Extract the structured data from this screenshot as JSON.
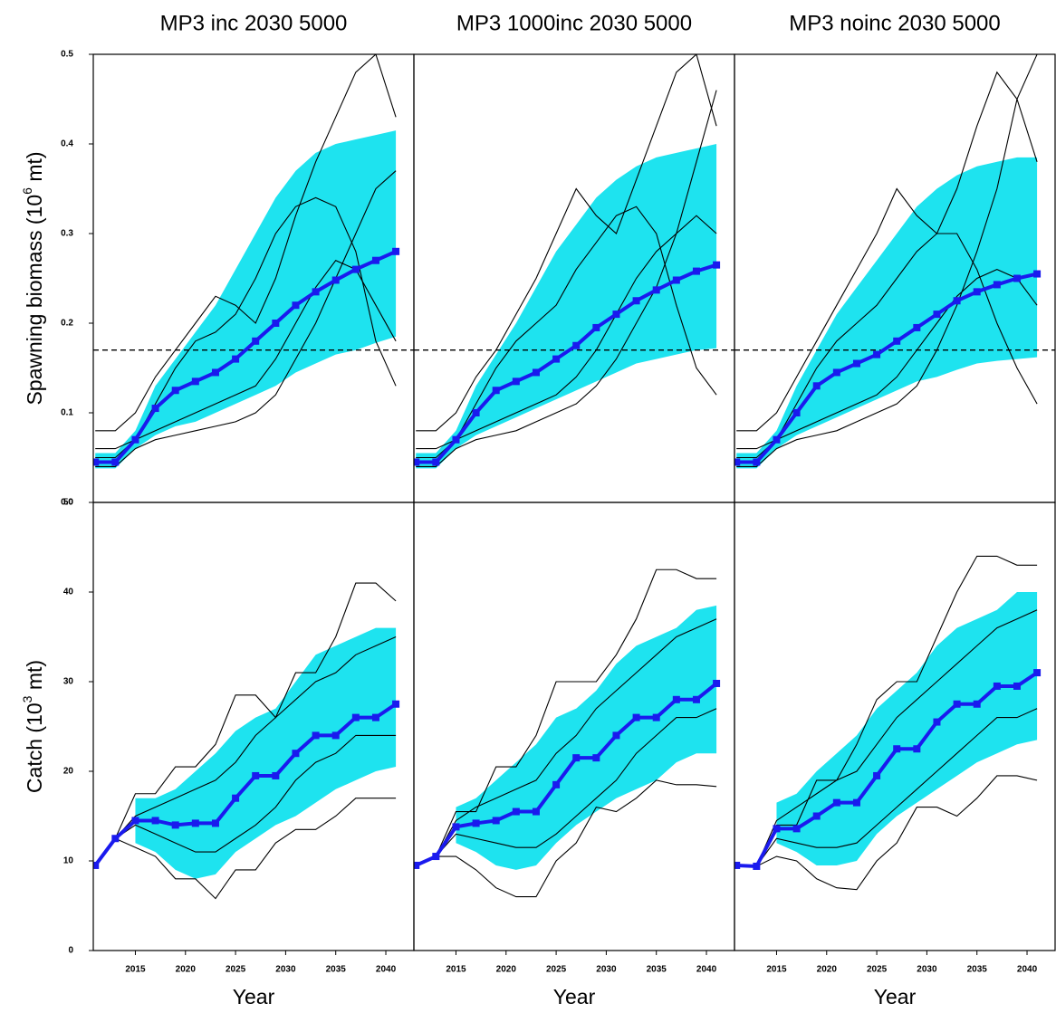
{
  "chart_data": [
    {
      "type": "line",
      "title": "MP3 inc 2030 5000",
      "ylabel": {
        "text": "Spawning biomass (10",
        "sup": "6",
        "tail": " mt)"
      },
      "x": [
        2011,
        2013,
        2015,
        2017,
        2019,
        2021,
        2023,
        2025,
        2027,
        2029,
        2031,
        2033,
        2035,
        2037,
        2039,
        2041
      ],
      "xlim": [
        2010.8,
        2042.8
      ],
      "ylim": [
        0,
        0.5
      ],
      "yticks": [
        {
          "value": 0,
          "label": "0.0"
        },
        0.1,
        0.2,
        0.3,
        0.4,
        0.5
      ],
      "reference_line": 0.17,
      "band": {
        "color": "#1ee3ef",
        "lower": [
          0.038,
          0.038,
          0.06,
          0.075,
          0.085,
          0.09,
          0.1,
          0.11,
          0.12,
          0.13,
          0.145,
          0.155,
          0.165,
          0.17,
          0.178,
          0.185
        ],
        "upper": [
          0.055,
          0.055,
          0.08,
          0.13,
          0.16,
          0.19,
          0.22,
          0.26,
          0.3,
          0.34,
          0.37,
          0.39,
          0.4,
          0.405,
          0.41,
          0.415
        ]
      },
      "median": {
        "color": "#1a1aee",
        "values": [
          0.045,
          0.045,
          0.07,
          0.105,
          0.125,
          0.135,
          0.145,
          0.16,
          0.18,
          0.2,
          0.22,
          0.235,
          0.248,
          0.26,
          0.27,
          0.28
        ]
      },
      "series": [
        {
          "color": "#000000",
          "values": [
            0.08,
            0.08,
            0.1,
            0.14,
            0.17,
            0.2,
            0.23,
            0.22,
            0.2,
            0.25,
            0.32,
            0.38,
            0.43,
            0.48,
            0.5,
            0.43
          ]
        },
        {
          "color": "#000000",
          "values": [
            0.06,
            0.06,
            0.07,
            0.08,
            0.09,
            0.1,
            0.11,
            0.12,
            0.13,
            0.16,
            0.2,
            0.24,
            0.27,
            0.26,
            0.22,
            0.18
          ]
        },
        {
          "color": "#000000",
          "values": [
            0.05,
            0.05,
            0.07,
            0.11,
            0.15,
            0.18,
            0.19,
            0.21,
            0.25,
            0.3,
            0.33,
            0.34,
            0.33,
            0.28,
            0.18,
            0.13
          ]
        },
        {
          "color": "#000000",
          "values": [
            0.04,
            0.04,
            0.06,
            0.07,
            0.075,
            0.08,
            0.085,
            0.09,
            0.1,
            0.12,
            0.16,
            0.2,
            0.25,
            0.3,
            0.35,
            0.37
          ]
        }
      ]
    },
    {
      "type": "line",
      "title": "MP3 1000inc 2030 5000",
      "x": [
        2011,
        2013,
        2015,
        2017,
        2019,
        2021,
        2023,
        2025,
        2027,
        2029,
        2031,
        2033,
        2035,
        2037,
        2039,
        2041
      ],
      "xlim": [
        2010.8,
        2042.8
      ],
      "ylim": [
        0,
        0.5
      ],
      "reference_line": 0.17,
      "band": {
        "color": "#1ee3ef",
        "lower": [
          0.038,
          0.038,
          0.06,
          0.075,
          0.085,
          0.095,
          0.105,
          0.115,
          0.125,
          0.135,
          0.145,
          0.155,
          0.16,
          0.165,
          0.17,
          0.172
        ],
        "upper": [
          0.055,
          0.055,
          0.08,
          0.13,
          0.165,
          0.2,
          0.24,
          0.28,
          0.31,
          0.34,
          0.36,
          0.375,
          0.385,
          0.39,
          0.395,
          0.4
        ]
      },
      "median": {
        "color": "#1a1aee",
        "values": [
          0.045,
          0.045,
          0.07,
          0.1,
          0.125,
          0.135,
          0.145,
          0.16,
          0.175,
          0.195,
          0.21,
          0.225,
          0.237,
          0.248,
          0.258,
          0.265
        ]
      },
      "series": [
        {
          "color": "#000000",
          "values": [
            0.08,
            0.08,
            0.1,
            0.14,
            0.17,
            0.21,
            0.25,
            0.3,
            0.35,
            0.32,
            0.3,
            0.36,
            0.42,
            0.48,
            0.5,
            0.42
          ]
        },
        {
          "color": "#000000",
          "values": [
            0.06,
            0.06,
            0.07,
            0.08,
            0.09,
            0.1,
            0.11,
            0.12,
            0.14,
            0.17,
            0.21,
            0.25,
            0.28,
            0.3,
            0.32,
            0.3
          ]
        },
        {
          "color": "#000000",
          "values": [
            0.05,
            0.05,
            0.07,
            0.11,
            0.15,
            0.18,
            0.2,
            0.22,
            0.26,
            0.29,
            0.32,
            0.33,
            0.3,
            0.22,
            0.15,
            0.12
          ]
        },
        {
          "color": "#000000",
          "values": [
            0.04,
            0.04,
            0.06,
            0.07,
            0.075,
            0.08,
            0.09,
            0.1,
            0.11,
            0.13,
            0.16,
            0.2,
            0.24,
            0.3,
            0.38,
            0.46
          ]
        }
      ]
    },
    {
      "type": "line",
      "title": "MP3 noinc 2030 5000",
      "x": [
        2011,
        2013,
        2015,
        2017,
        2019,
        2021,
        2023,
        2025,
        2027,
        2029,
        2031,
        2033,
        2035,
        2037,
        2039,
        2041
      ],
      "xlim": [
        2010.8,
        2042.8
      ],
      "ylim": [
        0,
        0.5
      ],
      "reference_line": 0.17,
      "band": {
        "color": "#1ee3ef",
        "lower": [
          0.038,
          0.038,
          0.06,
          0.075,
          0.085,
          0.095,
          0.105,
          0.115,
          0.125,
          0.135,
          0.14,
          0.148,
          0.155,
          0.158,
          0.16,
          0.162
        ],
        "upper": [
          0.055,
          0.055,
          0.08,
          0.13,
          0.17,
          0.21,
          0.24,
          0.27,
          0.3,
          0.33,
          0.35,
          0.365,
          0.375,
          0.38,
          0.385,
          0.385
        ]
      },
      "median": {
        "color": "#1a1aee",
        "values": [
          0.045,
          0.045,
          0.07,
          0.1,
          0.13,
          0.145,
          0.155,
          0.165,
          0.18,
          0.195,
          0.21,
          0.225,
          0.235,
          0.243,
          0.25,
          0.255
        ]
      },
      "series": [
        {
          "color": "#000000",
          "values": [
            0.08,
            0.08,
            0.1,
            0.14,
            0.18,
            0.22,
            0.26,
            0.3,
            0.35,
            0.32,
            0.3,
            0.35,
            0.42,
            0.48,
            0.45,
            0.38
          ]
        },
        {
          "color": "#000000",
          "values": [
            0.06,
            0.06,
            0.07,
            0.08,
            0.09,
            0.1,
            0.11,
            0.12,
            0.14,
            0.17,
            0.2,
            0.23,
            0.25,
            0.26,
            0.25,
            0.22
          ]
        },
        {
          "color": "#000000",
          "values": [
            0.05,
            0.05,
            0.07,
            0.11,
            0.15,
            0.18,
            0.2,
            0.22,
            0.25,
            0.28,
            0.3,
            0.3,
            0.26,
            0.2,
            0.15,
            0.11
          ]
        },
        {
          "color": "#000000",
          "values": [
            0.04,
            0.04,
            0.06,
            0.07,
            0.075,
            0.08,
            0.09,
            0.1,
            0.11,
            0.13,
            0.17,
            0.22,
            0.28,
            0.35,
            0.45,
            0.5
          ]
        }
      ]
    },
    {
      "type": "line",
      "xlabel": "Year",
      "ylabel": {
        "text": "Catch (10",
        "sup": "3",
        "tail": " mt)"
      },
      "x": [
        2011,
        2013,
        2015,
        2017,
        2019,
        2021,
        2023,
        2025,
        2027,
        2029,
        2031,
        2033,
        2035,
        2037,
        2039,
        2041
      ],
      "xlim": [
        2010.8,
        2042.8
      ],
      "ylim": [
        0,
        50
      ],
      "xticks": [
        2015,
        2020,
        2025,
        2030,
        2035,
        2040
      ],
      "yticks": [
        0,
        10,
        20,
        30,
        40,
        50
      ],
      "band": {
        "color": "#1ee3ef",
        "lower": [
          null,
          null,
          12,
          11,
          9,
          8,
          8.5,
          11,
          12.5,
          14,
          15,
          16.5,
          18,
          19,
          20,
          20.5
        ],
        "upper": [
          null,
          null,
          17,
          17,
          18,
          20,
          22,
          24.5,
          26,
          27,
          30,
          33,
          34,
          35,
          36,
          36
        ]
      },
      "median": {
        "color": "#1a1aee",
        "values": [
          9.5,
          12.5,
          14.5,
          14.5,
          14,
          14.2,
          14.2,
          17,
          19.5,
          19.5,
          22,
          24,
          24,
          26,
          26,
          27.5
        ]
      },
      "series": [
        {
          "color": "#000000",
          "values": [
            9.5,
            12.5,
            17.5,
            17.5,
            20.5,
            20.5,
            23,
            28.5,
            28.5,
            26,
            31,
            31,
            35,
            41,
            41,
            39
          ]
        },
        {
          "color": "#000000",
          "values": [
            9.5,
            12.5,
            11.5,
            10.5,
            8,
            8,
            5.8,
            9,
            9,
            12,
            13.5,
            13.5,
            15,
            17,
            17,
            17
          ]
        },
        {
          "color": "#000000",
          "values": [
            9.5,
            12.5,
            14,
            13,
            12,
            11,
            11,
            12.5,
            14,
            16,
            19,
            21,
            22,
            24,
            24,
            24
          ]
        },
        {
          "color": "#000000",
          "values": [
            9.5,
            12.5,
            15,
            16,
            17,
            18,
            19,
            21,
            24,
            26,
            28,
            30,
            31,
            33,
            34,
            35
          ]
        }
      ]
    },
    {
      "type": "line",
      "xlabel": "Year",
      "x": [
        2011,
        2013,
        2015,
        2017,
        2019,
        2021,
        2023,
        2025,
        2027,
        2029,
        2031,
        2033,
        2035,
        2037,
        2039,
        2041
      ],
      "xlim": [
        2010.8,
        2042.8
      ],
      "ylim": [
        0,
        50
      ],
      "xticks": [
        2015,
        2020,
        2025,
        2030,
        2035,
        2040
      ],
      "band": {
        "color": "#1ee3ef",
        "lower": [
          null,
          null,
          12,
          11,
          9.5,
          9,
          9.5,
          12,
          14,
          15.5,
          17,
          18,
          19,
          21,
          22,
          22
        ],
        "upper": [
          null,
          null,
          16,
          17,
          19,
          21,
          23,
          26,
          27,
          29,
          32,
          34,
          35,
          36,
          38,
          38.5
        ]
      },
      "median": {
        "color": "#1a1aee",
        "values": [
          9.5,
          10.5,
          13.8,
          14.2,
          14.5,
          15.5,
          15.5,
          18.5,
          21.5,
          21.5,
          24,
          26,
          26,
          28,
          28,
          29.8
        ]
      },
      "series": [
        {
          "color": "#000000",
          "values": [
            9.5,
            10.5,
            15.5,
            15.5,
            20.5,
            20.5,
            24,
            30,
            30,
            30,
            33,
            37,
            42.5,
            42.5,
            41.5,
            41.5
          ]
        },
        {
          "color": "#000000",
          "values": [
            9.5,
            10.5,
            10.5,
            9,
            7,
            6,
            6,
            10,
            12,
            16,
            15.5,
            17,
            19,
            18.5,
            18.5,
            18.3
          ]
        },
        {
          "color": "#000000",
          "values": [
            9.5,
            10.5,
            13,
            12.5,
            12,
            11.5,
            11.5,
            13,
            15,
            17,
            19,
            22,
            24,
            26,
            26,
            27
          ]
        },
        {
          "color": "#000000",
          "values": [
            9.5,
            10.5,
            14.5,
            16,
            17,
            18,
            19,
            22,
            24,
            27,
            29,
            31,
            33,
            35,
            36,
            37
          ]
        }
      ]
    },
    {
      "type": "line",
      "xlabel": "Year",
      "x": [
        2011,
        2013,
        2015,
        2017,
        2019,
        2021,
        2023,
        2025,
        2027,
        2029,
        2031,
        2033,
        2035,
        2037,
        2039,
        2041
      ],
      "xlim": [
        2010.8,
        2042.8
      ],
      "ylim": [
        0,
        50
      ],
      "xticks": [
        2015,
        2020,
        2025,
        2030,
        2035,
        2040
      ],
      "band": {
        "color": "#1ee3ef",
        "lower": [
          null,
          null,
          12,
          11,
          9.5,
          9.5,
          10,
          13,
          15,
          16.5,
          18,
          19.5,
          21,
          22,
          23,
          23.5
        ],
        "upper": [
          null,
          null,
          16.5,
          17.5,
          20,
          22,
          24,
          27,
          29,
          31,
          34,
          36,
          37,
          38,
          40,
          40
        ]
      },
      "median": {
        "color": "#1a1aee",
        "values": [
          9.5,
          9.4,
          13.6,
          13.6,
          15,
          16.5,
          16.5,
          19.5,
          22.5,
          22.5,
          25.5,
          27.5,
          27.5,
          29.5,
          29.5,
          31
        ]
      },
      "series": [
        {
          "color": "#000000",
          "values": [
            9.5,
            9.4,
            14,
            14,
            19,
            19,
            23,
            28,
            30,
            30,
            35,
            40,
            44,
            44,
            43,
            43
          ]
        },
        {
          "color": "#000000",
          "values": [
            9.5,
            9.4,
            10.5,
            10,
            8,
            7,
            6.8,
            10,
            12,
            16,
            16,
            15,
            17,
            19.5,
            19.5,
            19
          ]
        },
        {
          "color": "#000000",
          "values": [
            9.5,
            9.4,
            12.5,
            12,
            11.5,
            11.5,
            12,
            14,
            16,
            18,
            20,
            22,
            24,
            26,
            26,
            27
          ]
        },
        {
          "color": "#000000",
          "values": [
            9.5,
            9.4,
            14.5,
            16,
            17.5,
            19,
            20,
            23,
            26,
            28,
            30,
            32,
            34,
            36,
            37,
            38
          ]
        }
      ]
    }
  ]
}
